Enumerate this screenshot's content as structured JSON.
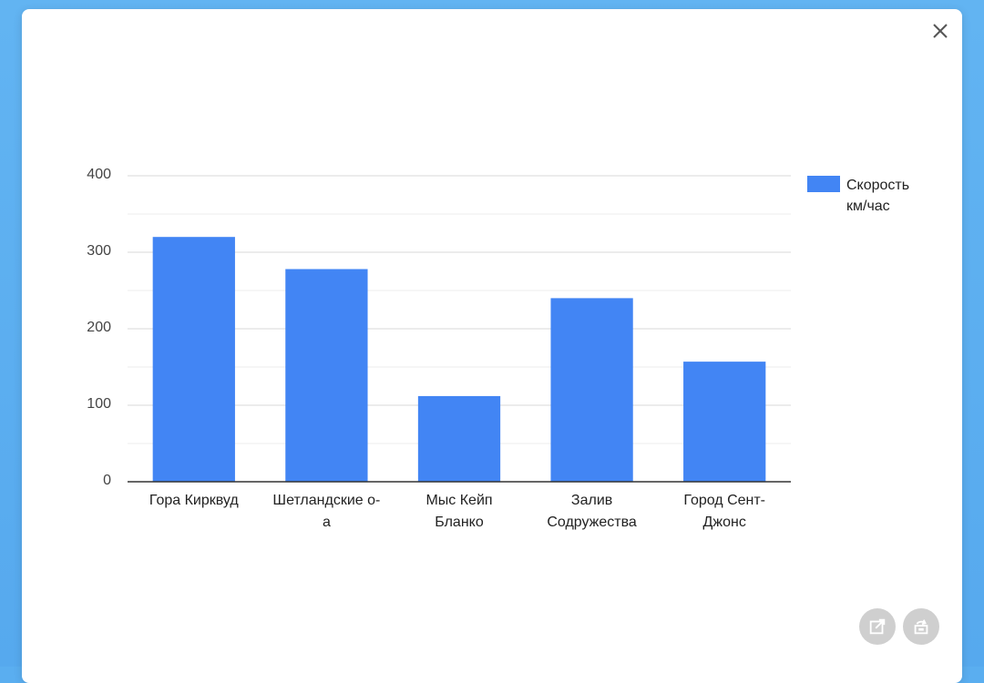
{
  "colors": {
    "bar": "#4285f4",
    "grid": "#d9d9d9",
    "minor_grid": "#ececec",
    "axis": "#333333",
    "button_bg": "#cfcfcf"
  },
  "modal": {
    "close_icon": "close-icon",
    "open_icon": "open-in-new-icon",
    "refresh_icon": "refresh-icon"
  },
  "chart_data": {
    "type": "bar",
    "categories": [
      "Гора Кирквуд",
      "Шетландские о-а",
      "Мыс Кейп Бланко",
      "Залив Содружества",
      "Город Сент-Джонс"
    ],
    "category_lines": [
      [
        "Гора Кирквуд"
      ],
      [
        "Шетландские о-",
        "а"
      ],
      [
        "Мыс Кейп",
        "Бланко"
      ],
      [
        "Залив",
        "Содружества"
      ],
      [
        "Город Сент-",
        "Джонс"
      ]
    ],
    "series": [
      {
        "name": "Скорость км/час",
        "name_lines": [
          "Скорость",
          "км/час"
        ],
        "values": [
          320,
          278,
          112,
          240,
          157
        ]
      }
    ],
    "ylim": [
      0,
      400
    ],
    "yticks": [
      "0",
      "100",
      "200",
      "300",
      "400"
    ],
    "minor_step": 50,
    "grid": true,
    "legend": "right"
  }
}
